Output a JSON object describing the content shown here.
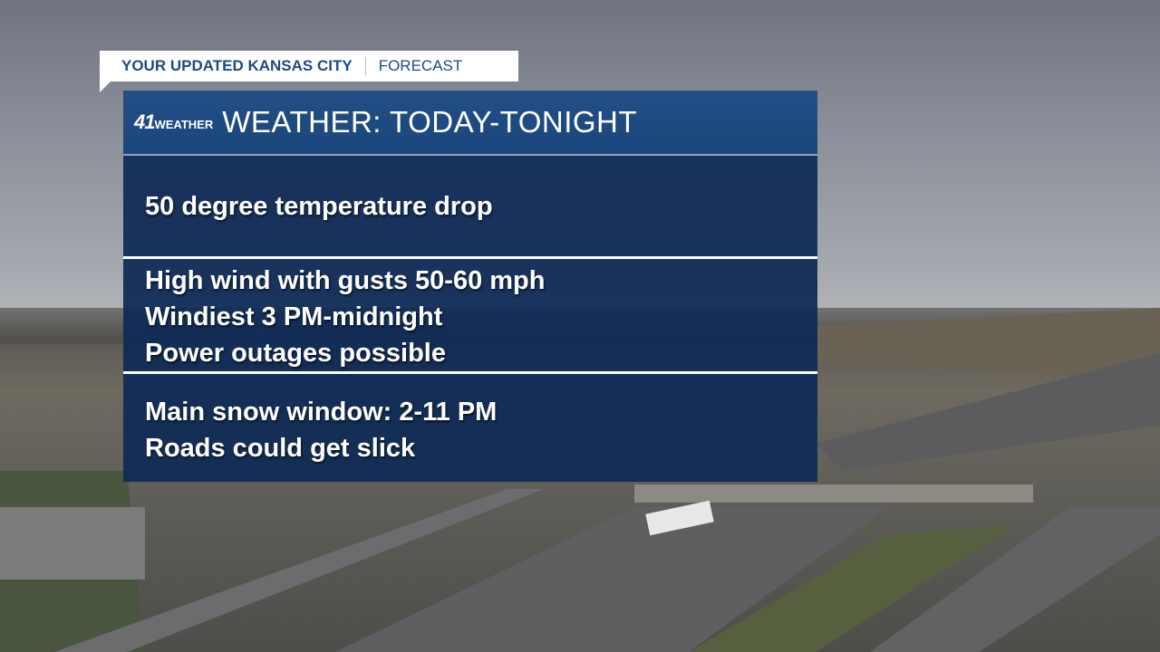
{
  "banner": {
    "label": "YOUR UPDATED KANSAS CITY",
    "category": "FORECAST"
  },
  "header": {
    "logo_number": "41",
    "logo_text": "WEATHER",
    "title": "WEATHER: TODAY-TONIGHT"
  },
  "sections": [
    {
      "lines": [
        "50 degree temperature drop"
      ]
    },
    {
      "lines": [
        "High wind with gusts 50-60 mph",
        "Windiest 3 PM-midnight",
        "Power outages possible"
      ]
    },
    {
      "lines": [
        "Main snow window: 2-11 PM",
        "Roads could get slick"
      ]
    }
  ],
  "colors": {
    "header": "#1d4a80",
    "body": "#0e2a56",
    "banner_text": "#1d4a85"
  }
}
